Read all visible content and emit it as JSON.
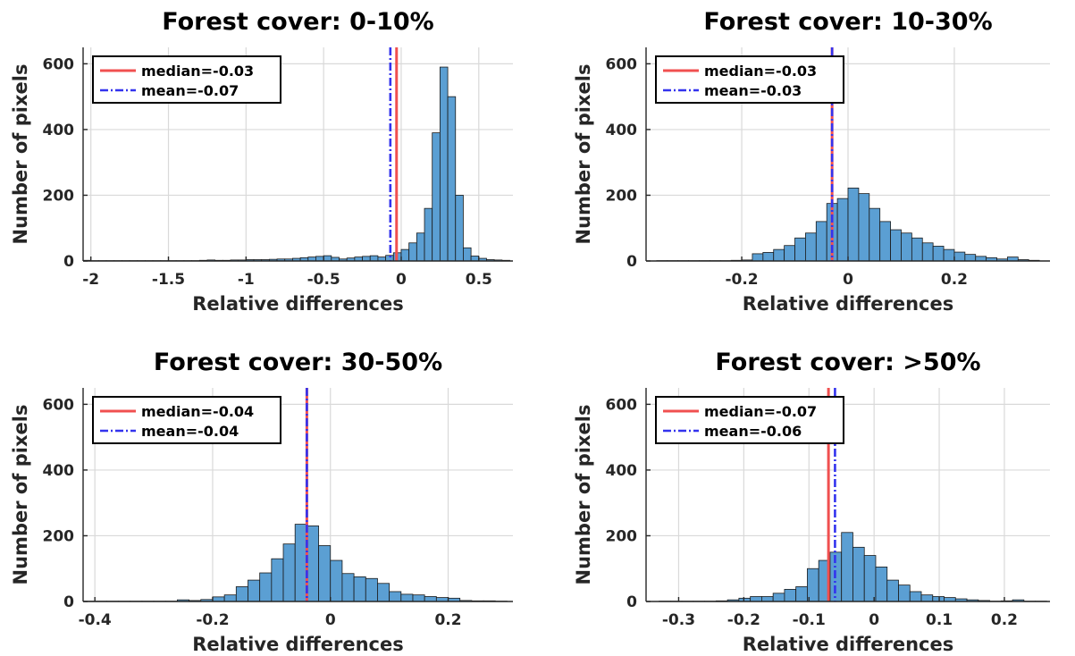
{
  "colors": {
    "bar_fill": "#5b9fd3",
    "bar_edge": "#1a1a1a",
    "median_line": "#f05050",
    "mean_line": "#3333ee"
  },
  "chart_data": [
    {
      "type": "bar",
      "title": "Forest cover: 0-10%",
      "xlabel": "Relative differences",
      "ylabel": "Number of pixels",
      "xlim": [
        -2.05,
        0.72
      ],
      "ylim": [
        0,
        650
      ],
      "xticks": [
        -2,
        -1.5,
        -1,
        -0.5,
        0,
        0.5
      ],
      "xtick_labels": [
        "-2",
        "-1.5",
        "-1",
        "-0.5",
        "0",
        "0.5"
      ],
      "yticks": [
        0,
        200,
        400,
        600
      ],
      "ytick_labels": [
        "0",
        "200",
        "400",
        "600"
      ],
      "grid": true,
      "legend_position": "top-left",
      "median": -0.03,
      "mean": -0.07,
      "legend": [
        "median=-0.03",
        "mean=-0.07"
      ],
      "bin_start": -2.05,
      "bin_width": 0.05,
      "values": [
        2,
        1,
        1,
        1,
        1,
        1,
        1,
        1,
        1,
        1,
        1,
        1,
        1,
        1,
        1,
        2,
        3,
        2,
        2,
        3,
        3,
        4,
        4,
        4,
        5,
        6,
        6,
        8,
        10,
        12,
        14,
        16,
        11,
        6,
        9,
        12,
        14,
        16,
        12,
        17,
        25,
        35,
        55,
        85,
        160,
        390,
        590,
        500,
        200,
        40,
        15,
        8,
        4,
        3,
        2
      ]
    },
    {
      "type": "bar",
      "title": "Forest cover: 10-30%",
      "xlabel": "Relative differences",
      "ylabel": "Number of pixels",
      "xlim": [
        -0.38,
        0.38
      ],
      "ylim": [
        0,
        650
      ],
      "xticks": [
        -0.2,
        0,
        0.2
      ],
      "xtick_labels": [
        "-0.2",
        "0",
        "0.2"
      ],
      "yticks": [
        0,
        200,
        400,
        600
      ],
      "ytick_labels": [
        "0",
        "200",
        "400",
        "600"
      ],
      "grid": true,
      "legend_position": "top-left",
      "median": -0.03,
      "mean": -0.03,
      "legend": [
        "median=-0.03",
        "mean=-0.03"
      ],
      "bin_start": -0.36,
      "bin_width": 0.02,
      "values": [
        1,
        1,
        1,
        1,
        1,
        1,
        1,
        2,
        3,
        22,
        26,
        35,
        47,
        70,
        85,
        120,
        175,
        190,
        222,
        205,
        160,
        120,
        95,
        85,
        70,
        55,
        45,
        35,
        27,
        20,
        14,
        10,
        6,
        12,
        4,
        2
      ]
    },
    {
      "type": "bar",
      "title": "Forest cover: 30-50%",
      "xlabel": "Relative differences",
      "ylabel": "Number of pixels",
      "xlim": [
        -0.42,
        0.31
      ],
      "ylim": [
        0,
        650
      ],
      "xticks": [
        -0.4,
        -0.2,
        0,
        0.2
      ],
      "xtick_labels": [
        "-0.4",
        "-0.2",
        "0",
        "0.2"
      ],
      "yticks": [
        0,
        200,
        400,
        600
      ],
      "ytick_labels": [
        "0",
        "200",
        "400",
        "600"
      ],
      "grid": true,
      "legend_position": "top-left",
      "median": -0.04,
      "mean": -0.04,
      "legend": [
        "median=-0.04",
        "mean=-0.04"
      ],
      "bin_start": -0.42,
      "bin_width": 0.02,
      "values": [
        1,
        1,
        1,
        1,
        1,
        1,
        1,
        1,
        5,
        3,
        6,
        14,
        20,
        45,
        65,
        87,
        130,
        175,
        235,
        230,
        170,
        125,
        85,
        75,
        70,
        55,
        30,
        22,
        20,
        15,
        12,
        10,
        3,
        2,
        2,
        1
      ]
    },
    {
      "type": "bar",
      "title": "Forest cover: >50%",
      "xlabel": "Relative differences",
      "ylabel": "Number of pixels",
      "xlim": [
        -0.35,
        0.27
      ],
      "ylim": [
        0,
        650
      ],
      "xticks": [
        -0.3,
        -0.2,
        -0.1,
        0,
        0.1,
        0.2
      ],
      "xtick_labels": [
        "-0.3",
        "-0.2",
        "-0.1",
        "0",
        "0.1",
        "0.2"
      ],
      "yticks": [
        0,
        200,
        400,
        600
      ],
      "ytick_labels": [
        "0",
        "200",
        "400",
        "600"
      ],
      "grid": true,
      "legend_position": "top-left",
      "median": -0.07,
      "mean": -0.06,
      "legend": [
        "median=-0.07",
        "mean=-0.06"
      ],
      "bin_start": -0.33,
      "bin_width": 0.0175,
      "values": [
        1,
        1,
        1,
        1,
        1,
        2,
        5,
        10,
        15,
        15,
        25,
        37,
        45,
        100,
        125,
        150,
        210,
        165,
        140,
        105,
        65,
        50,
        30,
        20,
        15,
        12,
        8,
        5,
        3,
        1,
        2,
        5,
        1,
        1
      ]
    }
  ]
}
